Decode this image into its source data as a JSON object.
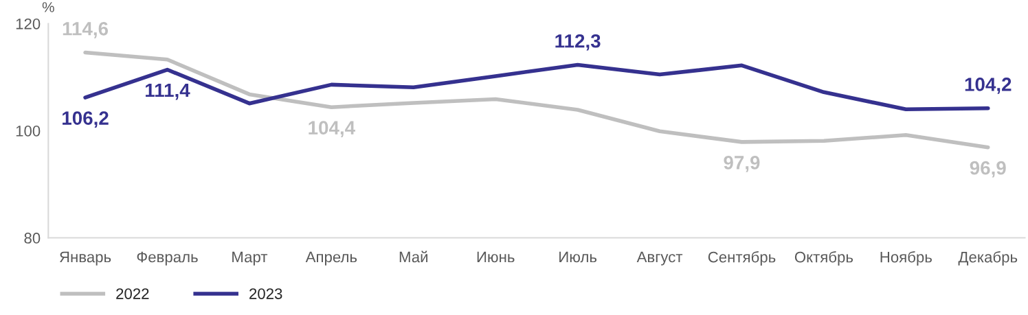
{
  "chart_data": {
    "type": "line",
    "ylabel": "%",
    "categories": [
      "Январь",
      "Февраль",
      "Март",
      "Апрель",
      "Май",
      "Июнь",
      "Июль",
      "Август",
      "Сентябрь",
      "Октябрь",
      "Ноябрь",
      "Декабрь"
    ],
    "series": [
      {
        "name": "2022",
        "color": "#bfbfbf",
        "values": [
          114.6,
          113.3,
          106.8,
          104.4,
          105.2,
          105.9,
          103.9,
          99.9,
          97.9,
          98.1,
          99.2,
          96.9
        ],
        "value_labels": [
          "114,6",
          null,
          null,
          "104,4",
          null,
          null,
          null,
          null,
          "97,9",
          null,
          null,
          "96,9"
        ]
      },
      {
        "name": "2023",
        "color": "#35318f",
        "values": [
          106.2,
          111.4,
          105.1,
          108.6,
          108.1,
          110.2,
          112.3,
          110.5,
          112.2,
          107.2,
          104.0,
          104.2
        ],
        "value_labels": [
          "106,2",
          "111,4",
          null,
          null,
          null,
          null,
          "112,3",
          null,
          null,
          null,
          null,
          "104,2"
        ]
      }
    ],
    "ylim": [
      80,
      120
    ],
    "yticks": [
      80,
      100,
      120
    ],
    "grid": false,
    "legend": "bottom left",
    "marker": "none",
    "line_style": "solid"
  }
}
